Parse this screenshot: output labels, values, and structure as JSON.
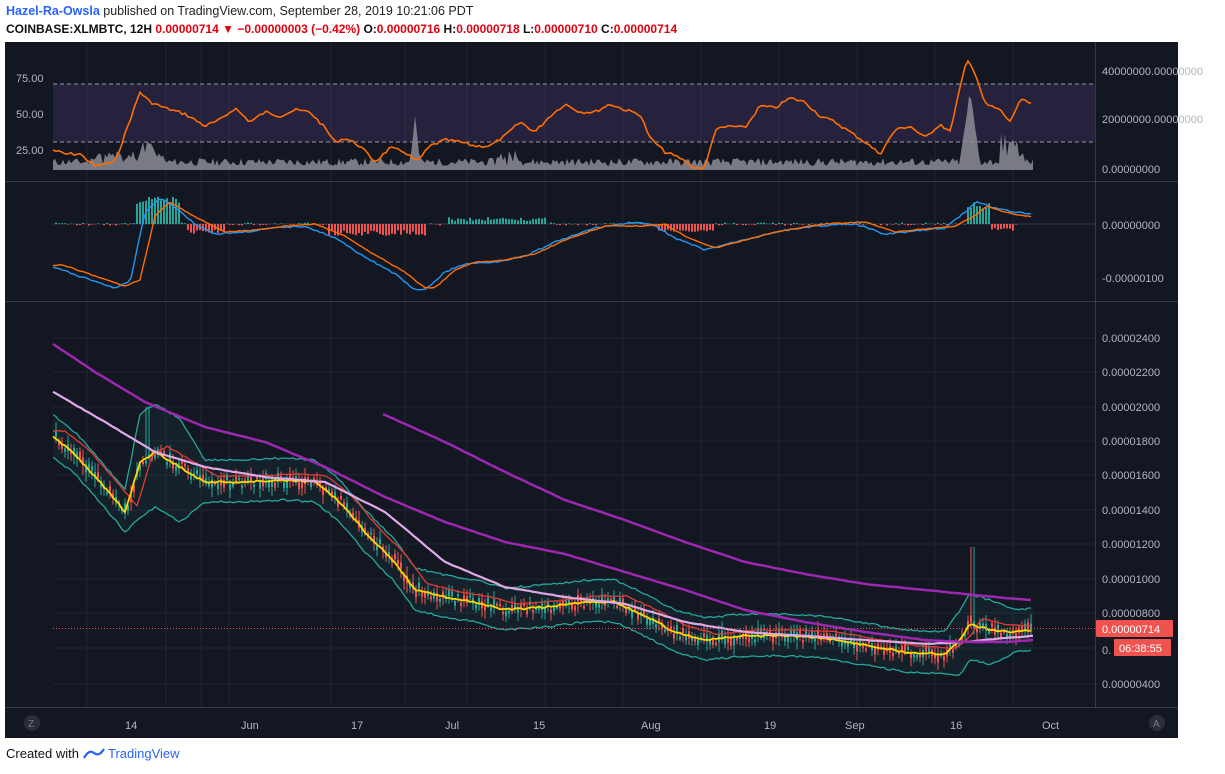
{
  "header": {
    "author": "Hazel-Ra-Owsla",
    "published_text": "published on TradingView.com, September 28, 2019 10:21:06 PDT",
    "symbol": "COINBASE:XLMBTC, 12H",
    "last": "0.00000714",
    "change_arrow": "▼",
    "change": "−0.00000003 (−0.42%)",
    "open_label": "O:",
    "open": "0.00000716",
    "high_label": "H:",
    "high": "0.00000718",
    "low_label": "L:",
    "low": "0.00000710",
    "close_label": "C:",
    "close": "0.00000714"
  },
  "panes": {
    "rsi": {
      "left_ticks": [
        "75.00",
        "50.00",
        "25.00"
      ],
      "right_ticks": [
        "40000000.00000000",
        "20000000.00000000",
        "0.00000000"
      ],
      "overbought": 70,
      "oversold": 30
    },
    "macd": {
      "right_ticks": [
        "0.00000000",
        "-0.00000100"
      ]
    },
    "price": {
      "right_ticks": [
        "0.00002400",
        "0.00002200",
        "0.00002000",
        "0.00001800",
        "0.00001600",
        "0.00001400",
        "0.00001200",
        "0.00001000",
        "0.00000800",
        "0.00000400"
      ],
      "partial_tick": "0.",
      "last_price_label": "0.00000714",
      "countdown": "06:38:55"
    }
  },
  "time_axis": {
    "labels": [
      "14",
      "Jun",
      "17",
      "Jul",
      "15",
      "Aug",
      "19",
      "Sep",
      "16",
      "Oct"
    ],
    "left_button": "Z",
    "right_button": "A"
  },
  "footer": {
    "created_with": "Created with",
    "brand": "TradingView"
  },
  "colors": {
    "background": "#131722",
    "rsi_line": "#ff6d00",
    "macd_line": "#2196f3",
    "signal_line": "#ff6d00",
    "hist_up": "#26a69a",
    "hist_down": "#ef5350",
    "ema200": "#9c27b0",
    "ma_pink": "#e0a8e6",
    "bollinger": "#26a69a",
    "ema_fast": "#ffd600",
    "ema_red": "#e53935",
    "candle_up": "#26a69a",
    "candle_down": "#ef5350",
    "price_label": "#ef5350"
  }
}
